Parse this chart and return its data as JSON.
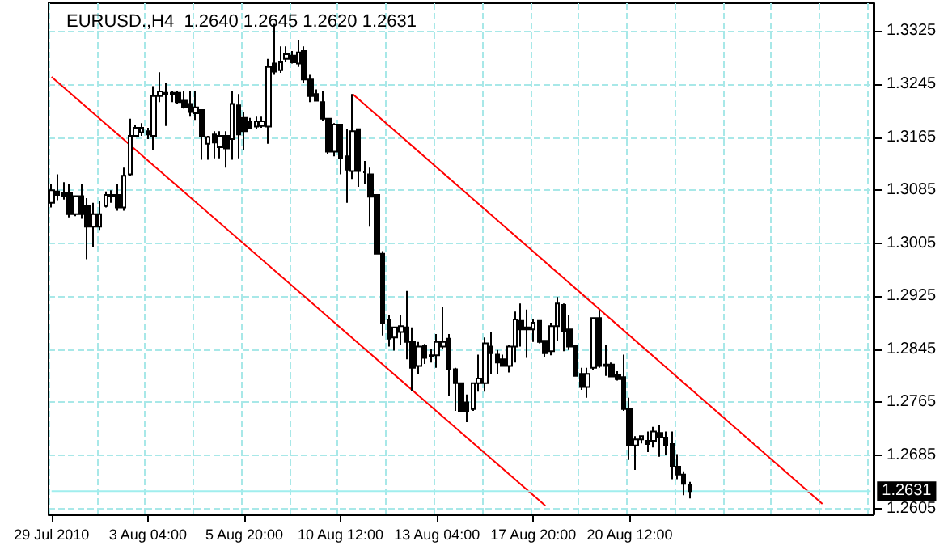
{
  "chart_data": {
    "type": "candlestick",
    "title": "EURUSD.,H4  1.2640 1.2645 1.2620 1.2631",
    "categories": [
      "29 Jul 2010",
      null,
      null,
      null,
      null,
      null,
      null,
      null,
      null,
      null,
      null,
      null,
      null,
      null,
      null,
      null,
      "3 Aug 04:00",
      null,
      null,
      null,
      null,
      null,
      null,
      null,
      null,
      null,
      null,
      null,
      null,
      null,
      null,
      null,
      "5 Aug 20:00",
      null,
      null,
      null,
      null,
      null,
      null,
      null,
      null,
      null,
      null,
      null,
      null,
      null,
      null,
      null,
      "10 Aug 12:00",
      null,
      null,
      null,
      null,
      null,
      null,
      null,
      null,
      null,
      null,
      null,
      null,
      null,
      null,
      null,
      "13 Aug 04:00",
      null,
      null,
      null,
      null,
      null,
      null,
      null,
      null,
      null,
      null,
      null,
      null,
      null,
      null,
      null,
      "17 Aug 20:00",
      null,
      null,
      null,
      null,
      null,
      null,
      null,
      null,
      null,
      null,
      null,
      null,
      null,
      null,
      null,
      "20 Aug 12:00",
      null,
      null,
      null,
      null,
      null,
      null,
      null,
      null,
      null,
      null,
      null,
      null,
      null,
      null,
      null,
      null,
      null,
      null,
      null,
      null,
      null,
      null,
      null,
      null,
      null,
      null,
      null,
      null,
      null,
      null,
      null,
      null,
      null,
      null,
      null,
      null,
      null,
      null,
      null,
      null
    ],
    "ohlc": [
      [
        1.3066,
        1.3095,
        1.3059,
        1.3085
      ],
      [
        1.3083,
        1.3109,
        1.307,
        1.3078
      ],
      [
        1.3081,
        1.3097,
        1.3071,
        1.3076
      ],
      [
        1.3081,
        1.3095,
        1.3044,
        1.3049
      ],
      [
        1.3049,
        1.3076,
        1.3046,
        1.3076
      ],
      [
        1.3076,
        1.3095,
        1.3042,
        1.3049
      ],
      [
        1.3061,
        1.3073,
        1.2981,
        1.303
      ],
      [
        1.303,
        1.3066,
        1.2999,
        1.3049
      ],
      [
        1.303,
        1.3068,
        1.3025,
        1.3049
      ],
      [
        1.3061,
        1.3083,
        1.3059,
        1.3078
      ],
      [
        1.3078,
        1.3085,
        1.3066,
        1.3076
      ],
      [
        1.3078,
        1.3095,
        1.3054,
        1.3059
      ],
      [
        1.3059,
        1.3119,
        1.3054,
        1.3107
      ],
      [
        1.3109,
        1.3193,
        1.3107,
        1.3167
      ],
      [
        1.3167,
        1.3184,
        1.3167,
        1.3179
      ],
      [
        1.3172,
        1.3186,
        1.3167,
        1.3179
      ],
      [
        1.3174,
        1.3179,
        1.3162,
        1.3169
      ],
      [
        1.3167,
        1.3242,
        1.3145,
        1.3227
      ],
      [
        1.3227,
        1.3263,
        1.3218,
        1.3234
      ],
      [
        1.3232,
        1.3247,
        1.3182,
        1.323
      ],
      [
        1.323,
        1.3234,
        1.3218,
        1.3232
      ],
      [
        1.3232,
        1.3234,
        1.3215,
        1.3218
      ],
      [
        1.322,
        1.3234,
        1.3208,
        1.321
      ],
      [
        1.3215,
        1.3234,
        1.3196,
        1.3203
      ],
      [
        1.3201,
        1.3234,
        1.3191,
        1.321
      ],
      [
        1.3206,
        1.3206,
        1.3131,
        1.3167
      ],
      [
        1.3155,
        1.3167,
        1.3131,
        1.3165
      ],
      [
        1.3169,
        1.3174,
        1.3133,
        1.3157
      ],
      [
        1.315,
        1.3174,
        1.3133,
        1.3167
      ],
      [
        1.3167,
        1.3174,
        1.3119,
        1.3148
      ],
      [
        1.3162,
        1.3234,
        1.3131,
        1.3215
      ],
      [
        1.3213,
        1.323,
        1.3133,
        1.3169
      ],
      [
        1.3194,
        1.3203,
        1.3145,
        1.3174
      ],
      [
        1.3189,
        1.3194,
        1.3179,
        1.3179
      ],
      [
        1.3181,
        1.3196,
        1.3177,
        1.3189
      ],
      [
        1.3182,
        1.3196,
        1.3179,
        1.3189
      ],
      [
        1.3181,
        1.3283,
        1.3155,
        1.3271
      ],
      [
        1.3276,
        1.3336,
        1.3259,
        1.3264
      ],
      [
        1.3266,
        1.3302,
        1.3262,
        1.3278
      ],
      [
        1.3283,
        1.3302,
        1.3278,
        1.329
      ],
      [
        1.3288,
        1.3295,
        1.3276,
        1.3278
      ],
      [
        1.3276,
        1.3312,
        1.3271,
        1.3293
      ],
      [
        1.3295,
        1.3302,
        1.3247,
        1.3252
      ],
      [
        1.3252,
        1.3259,
        1.3218,
        1.3227
      ],
      [
        1.323,
        1.3237,
        1.322,
        1.322
      ],
      [
        1.3218,
        1.3234,
        1.3189,
        1.3193
      ],
      [
        1.3193,
        1.3193,
        1.3139,
        1.3143
      ],
      [
        1.3143,
        1.3186,
        1.3136,
        1.3184
      ],
      [
        1.3184,
        1.3184,
        1.3109,
        1.3133
      ],
      [
        1.3136,
        1.3177,
        1.3066,
        1.3116
      ],
      [
        1.3114,
        1.323,
        1.3102,
        1.3174
      ],
      [
        1.3177,
        1.3177,
        1.309,
        1.3114
      ],
      [
        1.3112,
        1.3129,
        1.3095,
        1.3112
      ],
      [
        1.3109,
        1.3119,
        1.303,
        1.3075
      ],
      [
        1.3078,
        1.3078,
        1.2988,
        1.2989
      ],
      [
        1.2989,
        1.2993,
        1.2866,
        1.2885
      ],
      [
        1.289,
        1.2897,
        1.2849,
        1.2861
      ],
      [
        1.2863,
        1.2878,
        1.2843,
        1.2878
      ],
      [
        1.2871,
        1.2897,
        1.2852,
        1.288
      ],
      [
        1.2878,
        1.2933,
        1.283,
        1.2856
      ],
      [
        1.2856,
        1.2878,
        1.2782,
        1.2817
      ],
      [
        1.282,
        1.2856,
        1.2808,
        1.2849
      ],
      [
        1.2851,
        1.2853,
        1.2823,
        1.2832
      ],
      [
        1.2834,
        1.2846,
        1.2825,
        1.2836
      ],
      [
        1.2836,
        1.2868,
        1.2817,
        1.2856
      ],
      [
        1.2849,
        1.2909,
        1.2846,
        1.2856
      ],
      [
        1.2861,
        1.2868,
        1.2774,
        1.2815
      ],
      [
        1.2815,
        1.2817,
        1.2752,
        1.2794
      ],
      [
        1.2794,
        1.2794,
        1.2752,
        1.2752
      ],
      [
        1.2765,
        1.2777,
        1.2735,
        1.2752
      ],
      [
        1.2755,
        1.2794,
        1.2752,
        1.2794
      ],
      [
        1.2794,
        1.2837,
        1.2781,
        1.2801
      ],
      [
        1.2794,
        1.2863,
        1.2781,
        1.2854
      ],
      [
        1.2849,
        1.2871,
        1.2808,
        1.2839
      ],
      [
        1.2837,
        1.2844,
        1.2808,
        1.2825
      ],
      [
        1.283,
        1.2837,
        1.282,
        1.282
      ],
      [
        1.282,
        1.2851,
        1.281,
        1.2849
      ],
      [
        1.2849,
        1.2902,
        1.2825,
        1.289
      ],
      [
        1.2888,
        1.2914,
        1.2849,
        1.2875
      ],
      [
        1.2878,
        1.2905,
        1.2832,
        1.2875
      ],
      [
        1.2875,
        1.289,
        1.2856,
        1.2885
      ],
      [
        1.2888,
        1.2888,
        1.2854,
        1.2856
      ],
      [
        1.2858,
        1.2858,
        1.2834,
        1.2839
      ],
      [
        1.2842,
        1.2885,
        1.2836,
        1.288
      ],
      [
        1.288,
        1.2924,
        1.2858,
        1.2914
      ],
      [
        1.2912,
        1.2914,
        1.2842,
        1.2873
      ],
      [
        1.2875,
        1.2897,
        1.2844,
        1.2849
      ],
      [
        1.2851,
        1.2851,
        1.2805,
        1.2805
      ],
      [
        1.2808,
        1.2817,
        1.2784,
        1.2788
      ],
      [
        1.2788,
        1.2817,
        1.2772,
        1.2808
      ],
      [
        1.2817,
        1.2892,
        1.2814,
        1.2892
      ],
      [
        1.2892,
        1.2904,
        1.2817,
        1.282
      ],
      [
        1.2822,
        1.2852,
        1.2805,
        1.282
      ],
      [
        1.2822,
        1.2825,
        1.2803,
        1.2804
      ],
      [
        1.2806,
        1.2812,
        1.2798,
        1.28
      ],
      [
        1.2803,
        1.2837,
        1.2752,
        1.2755
      ],
      [
        1.2755,
        1.2772,
        1.2678,
        1.27
      ],
      [
        1.27,
        1.2714,
        1.2663,
        1.2709
      ],
      [
        1.2709,
        1.2714,
        1.2703,
        1.2714
      ],
      [
        1.2707,
        1.2721,
        1.269,
        1.2702
      ],
      [
        1.2707,
        1.2728,
        1.2697,
        1.2721
      ],
      [
        1.2719,
        1.2731,
        1.2683,
        1.2712
      ],
      [
        1.2712,
        1.2721,
        1.2685,
        1.27
      ],
      [
        1.2702,
        1.2721,
        1.2649,
        1.2668
      ],
      [
        1.2668,
        1.2687,
        1.2649,
        1.2656
      ],
      [
        1.2656,
        1.2661,
        1.2625,
        1.2642
      ],
      [
        1.264,
        1.2645,
        1.262,
        1.2631
      ],
      null,
      null,
      null,
      null,
      null,
      null,
      null,
      null,
      null,
      null,
      null,
      null,
      null,
      null,
      null,
      null,
      null,
      null,
      null,
      null,
      null,
      null,
      null,
      null,
      null,
      null,
      null,
      null,
      null,
      null
    ],
    "series": [
      {
        "type": "line",
        "color": "#ff0000",
        "values": [
          1.3256,
          null,
          null,
          null,
          null,
          null,
          null,
          null,
          null,
          null,
          null,
          null,
          null,
          null,
          null,
          null,
          null,
          null,
          null,
          null,
          null,
          null,
          null,
          null,
          null,
          null,
          null,
          null,
          null,
          null,
          null,
          null,
          null,
          null,
          null,
          null,
          null,
          null,
          null,
          null,
          null,
          null,
          null,
          null,
          null,
          null,
          null,
          null,
          null,
          null,
          null,
          null,
          null,
          null,
          null,
          null,
          null,
          null,
          null,
          null,
          null,
          null,
          null,
          null,
          null,
          null,
          null,
          null,
          null,
          null,
          null,
          null,
          null,
          null,
          null,
          null,
          null,
          null,
          null,
          null,
          null,
          null,
          1.2609,
          null,
          null,
          null,
          null,
          null,
          null,
          null,
          null,
          null,
          null,
          null,
          null,
          null,
          null,
          null,
          null,
          null,
          null,
          null,
          null,
          null,
          null,
          null,
          null,
          null,
          null,
          null,
          null,
          null,
          null,
          null,
          null,
          null,
          null,
          null,
          null,
          null,
          null,
          null,
          null,
          null,
          null,
          null,
          null,
          null,
          null,
          null,
          null,
          null,
          null,
          null,
          null,
          null,
          null
        ]
      },
      {
        "type": "line",
        "color": "#ff0000",
        "values": [
          null,
          null,
          null,
          null,
          null,
          null,
          null,
          null,
          null,
          null,
          null,
          null,
          null,
          null,
          null,
          null,
          null,
          null,
          null,
          null,
          null,
          null,
          null,
          null,
          null,
          null,
          null,
          null,
          null,
          null,
          null,
          null,
          null,
          null,
          null,
          null,
          null,
          null,
          null,
          null,
          null,
          null,
          null,
          null,
          null,
          null,
          null,
          null,
          null,
          null,
          1.323,
          null,
          null,
          null,
          null,
          null,
          null,
          null,
          null,
          null,
          null,
          null,
          null,
          null,
          null,
          null,
          null,
          null,
          null,
          null,
          null,
          null,
          null,
          null,
          null,
          null,
          null,
          null,
          null,
          null,
          null,
          null,
          null,
          null,
          null,
          null,
          null,
          null,
          null,
          null,
          null,
          null,
          null,
          null,
          null,
          null,
          null,
          null,
          null,
          null,
          null,
          null,
          null,
          null,
          null,
          null,
          null,
          null,
          null,
          null,
          null,
          null,
          null,
          null,
          null,
          null,
          null,
          null,
          null,
          null,
          null,
          null,
          null,
          null,
          null,
          null,
          null,
          null,
          1.2612,
          null,
          null,
          null,
          null,
          null,
          null,
          null,
          null
        ]
      }
    ],
    "ylim": [
      1.2596,
      1.3367
    ],
    "yticks": [
      1.2605,
      1.2685,
      1.2765,
      1.2845,
      1.2925,
      1.3005,
      1.3085,
      1.3165,
      1.3245,
      1.3325
    ],
    "ref_lines": [
      {
        "axis": "y",
        "value": 1.2631,
        "label": "1.2631",
        "color": "#a0eeee",
        "line_style": "solid"
      }
    ],
    "grid": true,
    "line_style": "solid"
  }
}
